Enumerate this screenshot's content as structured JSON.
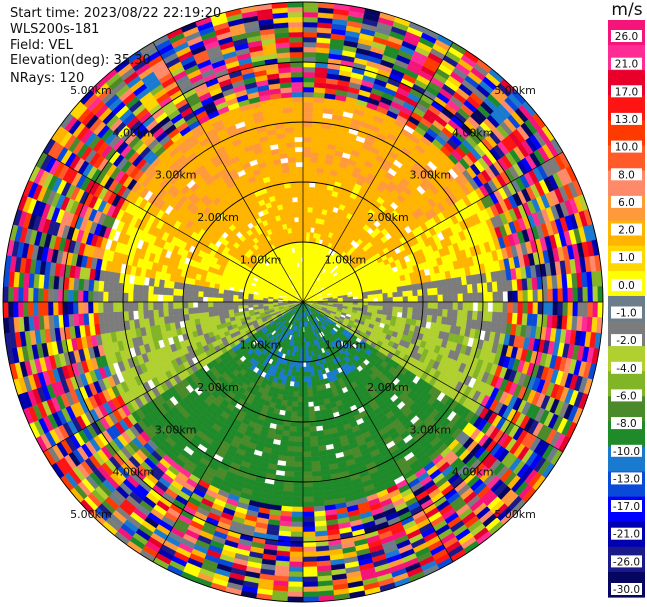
{
  "header": {
    "start_time": "Start time: 2023/08/22 22:19:20",
    "instrument": "WLS200s-181",
    "field": "Field: VEL",
    "elevation": "Elevation(deg): 35.30",
    "nrays": "NRays: 120"
  },
  "colorbar": {
    "title": "m/s",
    "ticks": [
      "26.0",
      "21.0",
      "17.0",
      "13.0",
      "10.0",
      "8.0",
      "6.0",
      "2.0",
      "1.0",
      "0.0",
      "-1.0",
      "-2.0",
      "-4.0",
      "-6.0",
      "-8.0",
      "-10.0",
      "-13.0",
      "-17.0",
      "-21.0",
      "-26.0",
      "-30.0"
    ],
    "colors": [
      "#f5147a",
      "#ff2c96",
      "#e8002a",
      "#ff1414",
      "#ff3a00",
      "#ff5a28",
      "#ff8a6a",
      "#ff9a3a",
      "#ffb400",
      "#ffd700",
      "#ffff00",
      "#6b7d8a",
      "#7c7c7c",
      "#b0d030",
      "#82b428",
      "#4a8a2a",
      "#1f8a2a",
      "#1a7ad0",
      "#0a4ad8",
      "#0000ff",
      "#0000b0",
      "#1a1a8a",
      "#060660"
    ]
  },
  "chart_data": {
    "type": "ppi",
    "field": "VEL",
    "units": "m/s",
    "nrays": 120,
    "range_km_max": 5.0,
    "range_rings_km": [
      1.0,
      2.0,
      3.0,
      4.0,
      5.0
    ],
    "ring_labels": [
      "1.00km",
      "2.00km",
      "3.00km",
      "4.00km",
      "5.00km"
    ],
    "spokes_deg": [
      0,
      30,
      60,
      90,
      120,
      150,
      180,
      210,
      240,
      270,
      300,
      330
    ],
    "description_regions": [
      {
        "sector": "north (approx 300°-60°), 1-3 km",
        "velocity_ms": 6.0
      },
      {
        "sector": "near center, north half",
        "velocity_ms": 1.5
      },
      {
        "sector": "east and west, near horizontal",
        "velocity_ms": 0.0
      },
      {
        "sector": "south-west and south-east",
        "velocity_ms": -2.5
      },
      {
        "sector": "south (approx 150°-210°), 1-3 km",
        "velocity_ms": -6.0
      },
      {
        "sector": "south, near center",
        "velocity_ms": -9.0
      },
      {
        "sector": "beyond ~3.5 km",
        "velocity_ms": "noise (all values)"
      }
    ]
  }
}
